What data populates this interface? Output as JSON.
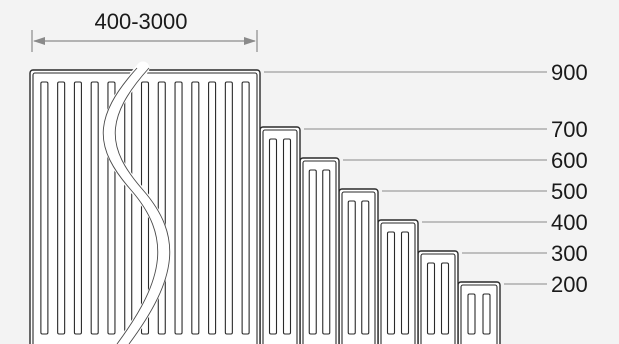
{
  "width_label": "400-3000",
  "heights": [
    "900",
    "700",
    "600",
    "500",
    "400",
    "300",
    "200"
  ],
  "colors": {
    "background": "#f3f3f3",
    "panel_fill": "#ffffff",
    "outline": "#2a2a2a",
    "leader_line": "#8a8a8a",
    "text": "#1a1a1a"
  }
}
